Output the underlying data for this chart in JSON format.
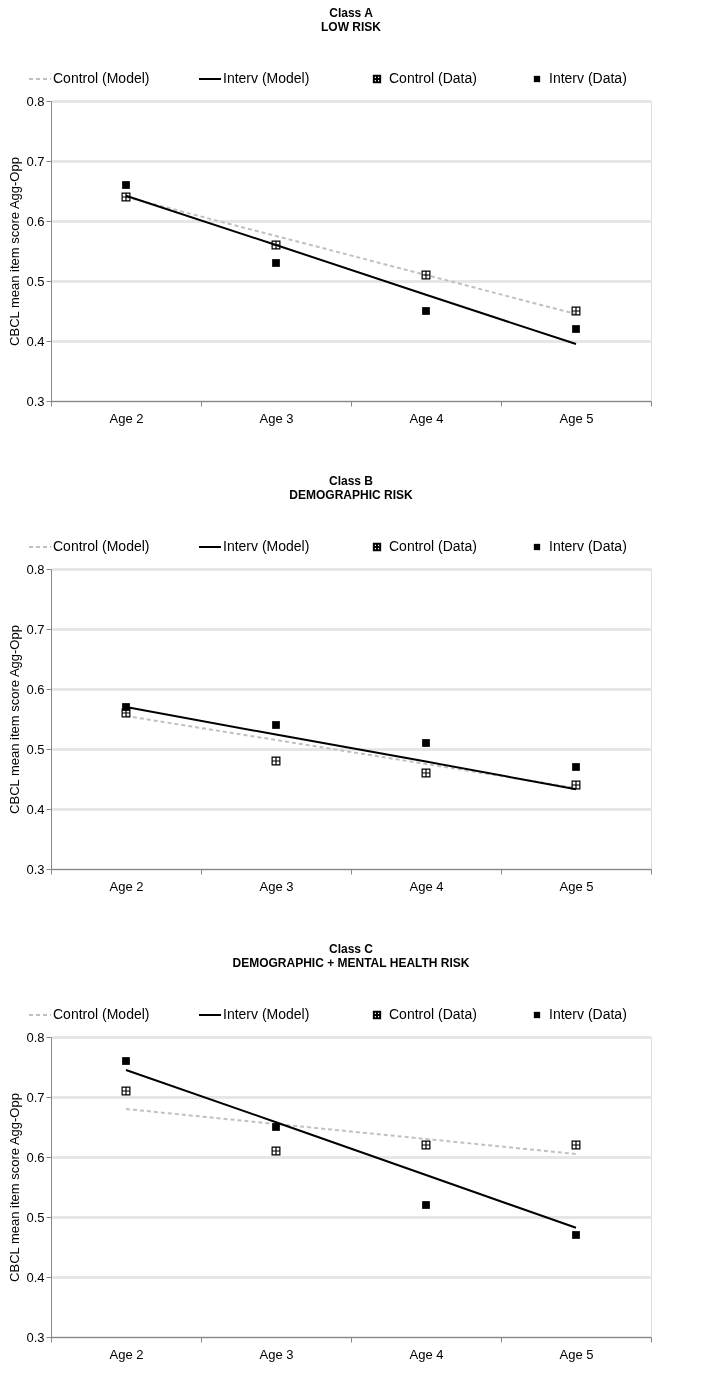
{
  "chart_data": [
    {
      "type": "line",
      "title": "Class A",
      "subtitle": "LOW RISK",
      "ylabel": "CBCL mean item score Agg-Opp",
      "categories": [
        "Age 2",
        "Age 3",
        "Age 4",
        "Age 5"
      ],
      "ylim": [
        0.3,
        0.8
      ],
      "yticks": [
        0.3,
        0.4,
        0.5,
        0.6,
        0.7,
        0.8
      ],
      "grid": "y",
      "legend": "top",
      "series": [
        {
          "name": "Control (Model)",
          "color": "#c0c0c0",
          "line_style": "dashed",
          "marker": "none",
          "values": [
            0.64,
            0.575,
            0.51,
            0.445
          ]
        },
        {
          "name": "Interv (Model)",
          "color": "#000000",
          "line_style": "solid",
          "marker": "none",
          "values": [
            0.642,
            0.56,
            0.477,
            0.395
          ]
        },
        {
          "name": "Control (Data)",
          "type": "scatter",
          "color": "#000000",
          "marker": "cross",
          "values": [
            0.64,
            0.56,
            0.51,
            0.45
          ]
        },
        {
          "name": "Interv (Data)",
          "type": "scatter",
          "color": "#000000",
          "marker": "square",
          "values": [
            0.66,
            0.53,
            0.45,
            0.42
          ]
        }
      ]
    },
    {
      "type": "line",
      "title": "Class B",
      "subtitle": "DEMOGRAPHIC RISK",
      "ylabel": "CBCL mean item score Agg-Opp",
      "categories": [
        "Age 2",
        "Age 3",
        "Age 4",
        "Age 5"
      ],
      "ylim": [
        0.3,
        0.8
      ],
      "yticks": [
        0.3,
        0.4,
        0.5,
        0.6,
        0.7,
        0.8
      ],
      "grid": "y",
      "legend": "top",
      "series": [
        {
          "name": "Control (Model)",
          "color": "#c0c0c0",
          "line_style": "dashed",
          "marker": "none",
          "values": [
            0.555,
            0.515,
            0.475,
            0.435
          ]
        },
        {
          "name": "Interv (Model)",
          "color": "#000000",
          "line_style": "solid",
          "marker": "none",
          "values": [
            0.57,
            0.524,
            0.479,
            0.433
          ]
        },
        {
          "name": "Control (Data)",
          "type": "scatter",
          "color": "#000000",
          "marker": "cross",
          "values": [
            0.56,
            0.48,
            0.46,
            0.44
          ]
        },
        {
          "name": "Interv (Data)",
          "type": "scatter",
          "color": "#000000",
          "marker": "square",
          "values": [
            0.57,
            0.54,
            0.51,
            0.47
          ]
        }
      ]
    },
    {
      "type": "line",
      "title": "Class C",
      "subtitle": "DEMOGRAPHIC + MENTAL HEALTH RISK",
      "ylabel": "CBCL mean item score Agg-Opp",
      "categories": [
        "Age 2",
        "Age 3",
        "Age 4",
        "Age 5"
      ],
      "ylim": [
        0.3,
        0.8
      ],
      "yticks": [
        0.3,
        0.4,
        0.5,
        0.6,
        0.7,
        0.8
      ],
      "grid": "y",
      "legend": "top",
      "series": [
        {
          "name": "Control (Model)",
          "color": "#c0c0c0",
          "line_style": "dashed",
          "marker": "none",
          "values": [
            0.68,
            0.655,
            0.63,
            0.605
          ]
        },
        {
          "name": "Interv (Model)",
          "color": "#000000",
          "line_style": "solid",
          "marker": "none",
          "values": [
            0.745,
            0.658,
            0.57,
            0.482
          ]
        },
        {
          "name": "Control (Data)",
          "type": "scatter",
          "color": "#000000",
          "marker": "cross",
          "values": [
            0.71,
            0.61,
            0.62,
            0.62
          ]
        },
        {
          "name": "Interv (Data)",
          "type": "scatter",
          "color": "#000000",
          "marker": "square",
          "values": [
            0.76,
            0.65,
            0.52,
            0.47
          ]
        }
      ]
    }
  ]
}
